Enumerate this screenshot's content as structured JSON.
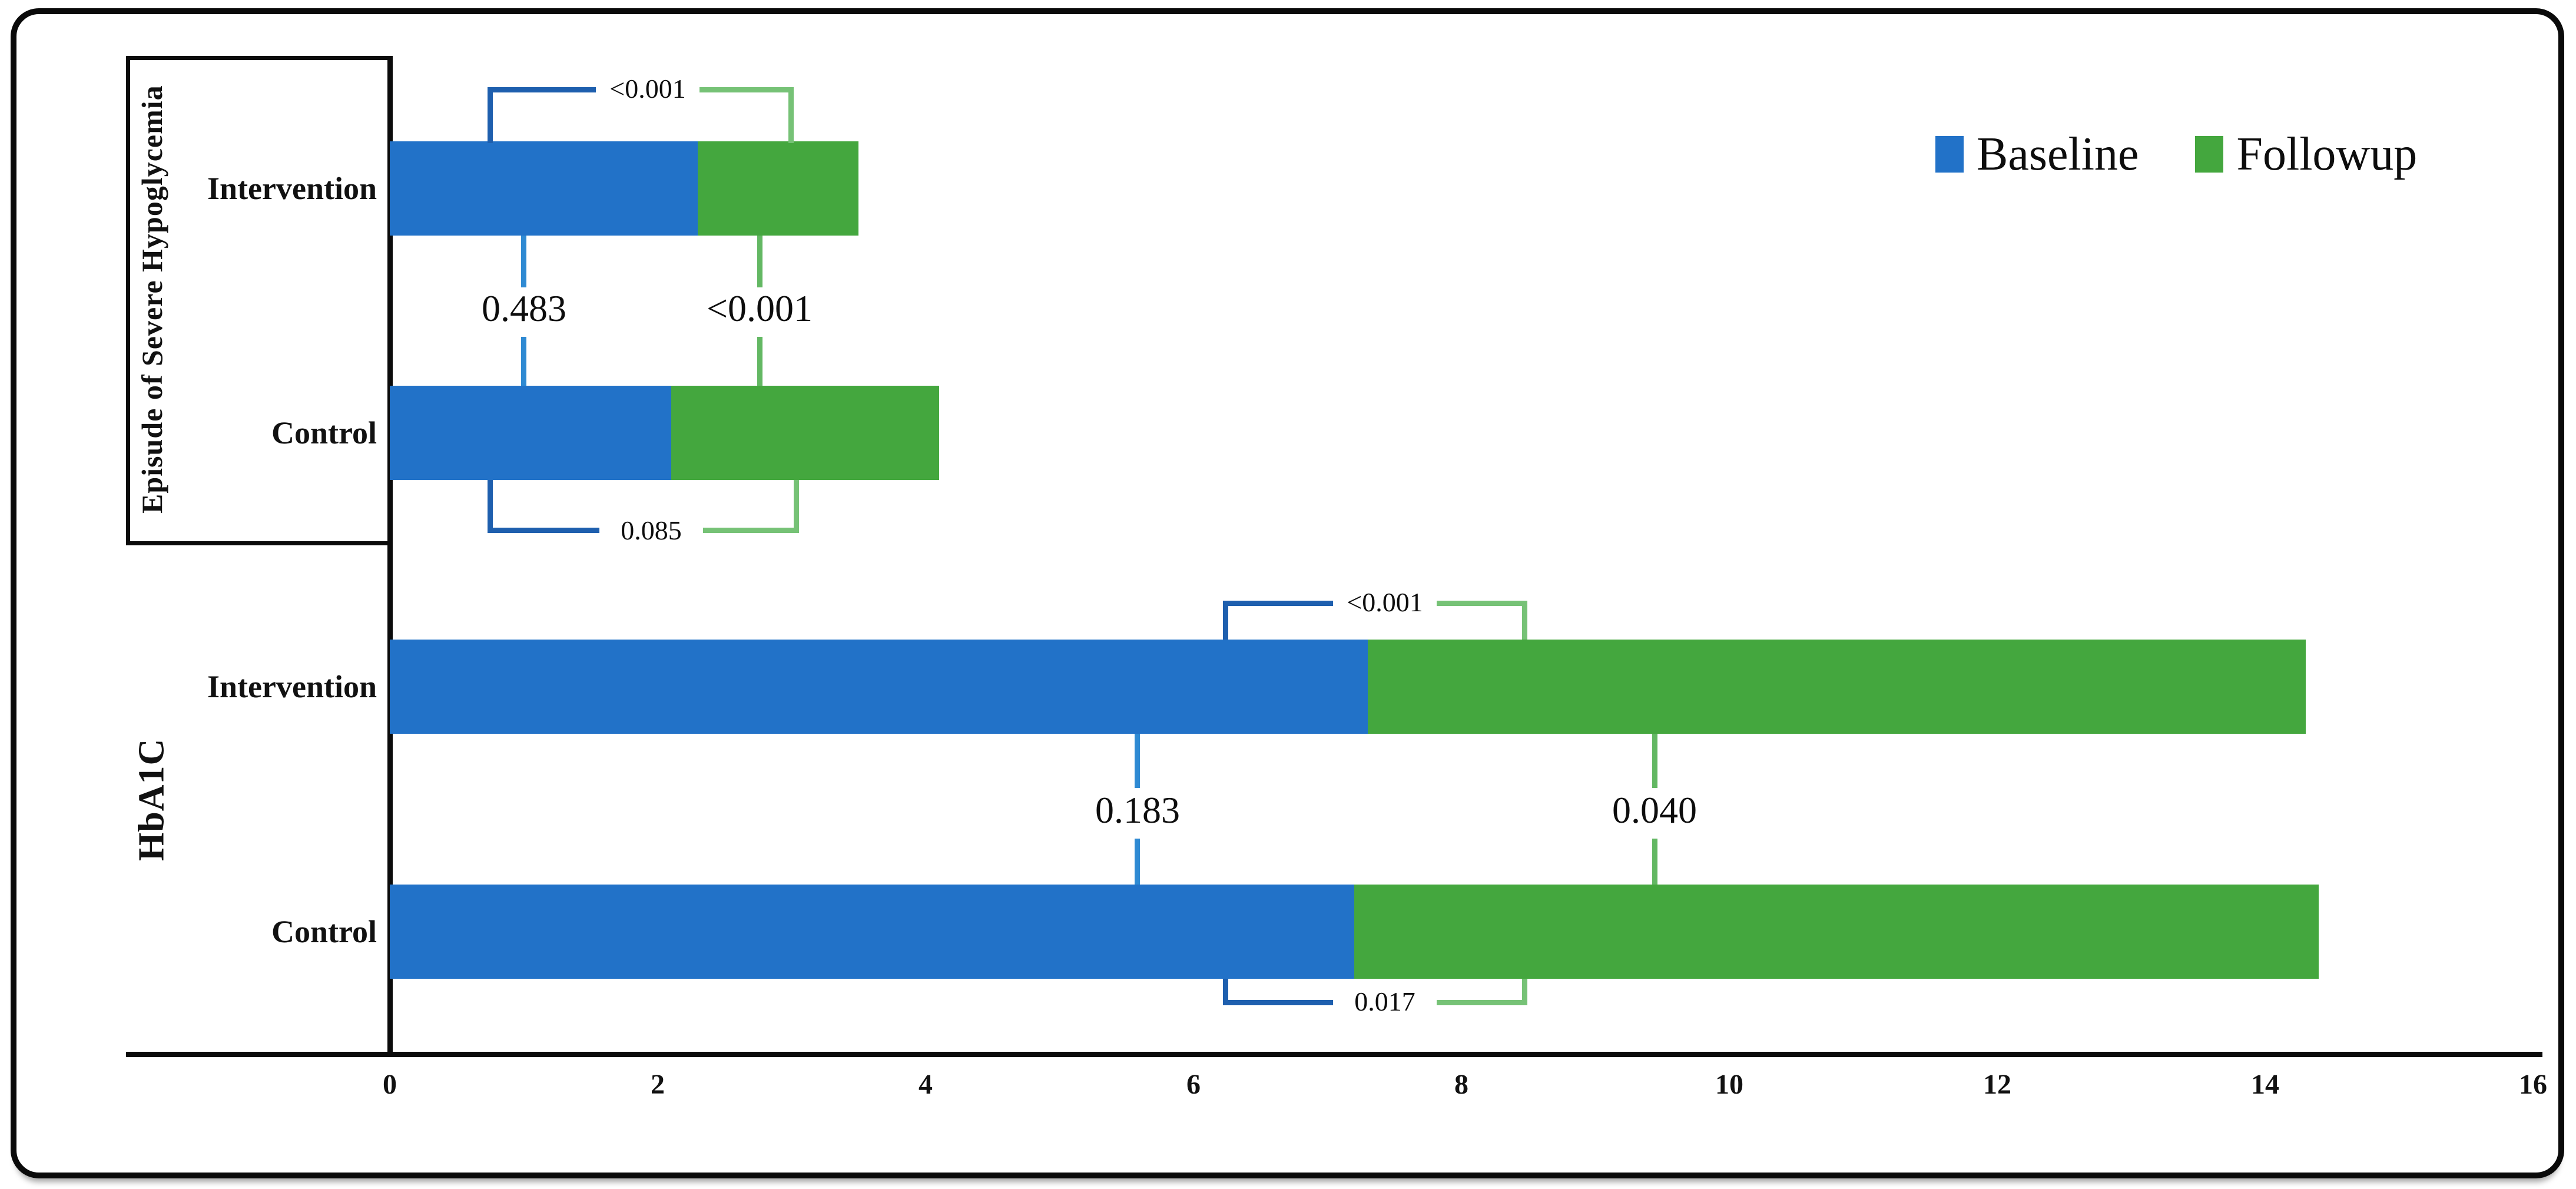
{
  "legend": {
    "items": [
      {
        "label": "Baseline",
        "color": "#2272c8"
      },
      {
        "label": "Followup",
        "color": "#44a73e"
      }
    ]
  },
  "colors": {
    "bar_baseline": "#2272c8",
    "bar_followup": "#44a73e",
    "bracket_blue": "#1e5fae",
    "bracket_green": "#76c276",
    "connector_blue": "#2f8ad3",
    "connector_green": "#63b863"
  },
  "chart_data": {
    "type": "bar",
    "orientation": "horizontal",
    "stacked": true,
    "series": [
      "Baseline",
      "Followup"
    ],
    "x_ticks": [
      0,
      2,
      4,
      6,
      8,
      10,
      12,
      14,
      16
    ],
    "xlim": [
      0,
      16
    ],
    "grid": false,
    "legend_position": "top-right",
    "groups": [
      {
        "label": "Episude of Severe Hypoglycemia",
        "rows": [
          {
            "label": "Intervention",
            "baseline": 2.3,
            "followup": 1.2
          },
          {
            "label": "Control",
            "baseline": 2.1,
            "followup": 2.0
          }
        ],
        "p_values": {
          "within_intervention": "<0.001",
          "between_baseline": "0.483",
          "between_followup": "<0.001",
          "within_control": "0.085"
        }
      },
      {
        "label": "HbA1C",
        "rows": [
          {
            "label": "Intervention",
            "baseline": 7.3,
            "followup": 7.0
          },
          {
            "label": "Control",
            "baseline": 7.2,
            "followup": 7.2
          }
        ],
        "p_values": {
          "within_intervention": "<0.001",
          "between_baseline": "0.183",
          "between_followup": "0.040",
          "within_control": "0.017"
        }
      }
    ]
  }
}
